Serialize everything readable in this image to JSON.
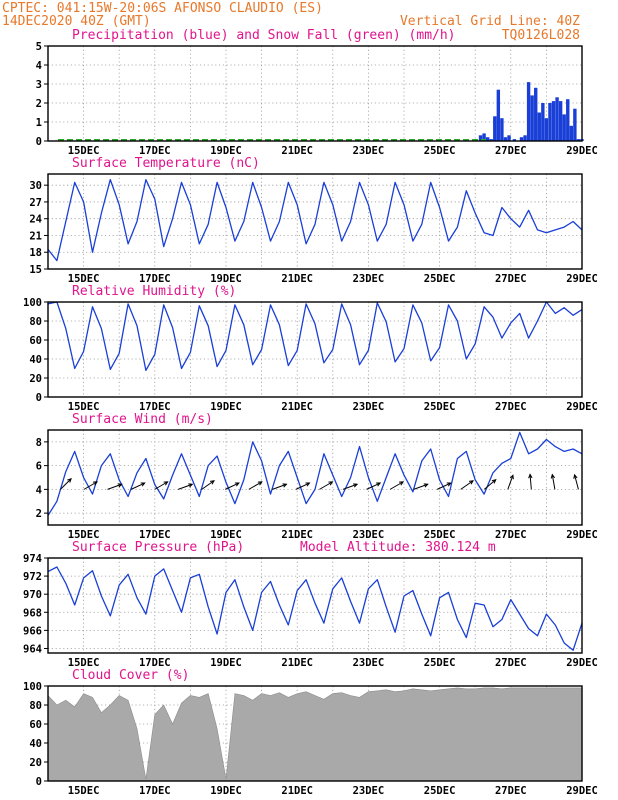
{
  "header": {
    "line1": "CPTEC:   041:15W-20:06S   AFONSO CLAUDIO (ES)",
    "line2_left": "14DEC2020 40Z (GMT)",
    "line2_right": "Vertical Grid Line: 40Z",
    "line3_right": "TQ0126L028"
  },
  "colors": {
    "header": "#e8782a",
    "title": "#e0148c",
    "series": "#1a3fd6",
    "snow": "#2aa82a",
    "cloud": "#a9a9a9"
  },
  "chart_data": [
    {
      "type": "bar",
      "title": "Precipitation (blue) and Snow Fall (green) (mm/h)",
      "ylim": [
        0,
        5
      ],
      "yticks": [
        "0",
        "1",
        "2",
        "3",
        "4",
        "5"
      ],
      "xlabels": [
        "15DEC",
        "17DEC",
        "19DEC",
        "21DEC",
        "23DEC",
        "25DEC",
        "27DEC",
        "29DEC"
      ],
      "series": [
        {
          "name": "Precipitation",
          "x": [
            26.15,
            26.25,
            26.35,
            26.45,
            26.55,
            26.65,
            26.75,
            26.85,
            26.95,
            27.1,
            27.3,
            27.4,
            27.5,
            27.6,
            27.7,
            27.8,
            27.9,
            28.0,
            28.1,
            28.2,
            28.3,
            28.4,
            28.5,
            28.6,
            28.7,
            28.8,
            28.9,
            29.0
          ],
          "values": [
            0.3,
            0.4,
            0.2,
            0.1,
            1.3,
            2.7,
            1.2,
            0.2,
            0.3,
            0.1,
            0.2,
            0.3,
            3.1,
            2.4,
            2.8,
            1.5,
            2.0,
            1.2,
            2.0,
            2.1,
            2.3,
            2.1,
            1.4,
            2.2,
            0.8,
            1.7,
            0.1,
            0.1
          ]
        },
        {
          "name": "Snow Fall",
          "x": [],
          "values": []
        }
      ]
    },
    {
      "type": "line",
      "title": "Surface Temperature (nC)",
      "ylim": [
        15,
        32
      ],
      "yticks": [
        "15",
        "18",
        "21",
        "24",
        "27",
        "30"
      ],
      "xlabels": [
        "15DEC",
        "17DEC",
        "19DEC",
        "21DEC",
        "23DEC",
        "25DEC",
        "27DEC",
        "29DEC"
      ],
      "x": [
        14.0,
        14.25,
        14.5,
        14.75,
        15.0,
        15.25,
        15.5,
        15.75,
        16.0,
        16.25,
        16.5,
        16.75,
        17.0,
        17.25,
        17.5,
        17.75,
        18.0,
        18.25,
        18.5,
        18.75,
        19.0,
        19.25,
        19.5,
        19.75,
        20.0,
        20.25,
        20.5,
        20.75,
        21.0,
        21.25,
        21.5,
        21.75,
        22.0,
        22.25,
        22.5,
        22.75,
        23.0,
        23.25,
        23.5,
        23.75,
        24.0,
        24.25,
        24.5,
        24.75,
        25.0,
        25.25,
        25.5,
        25.75,
        26.0,
        26.25,
        26.5,
        26.75,
        27.0,
        27.25,
        27.5,
        27.75,
        28.0,
        28.25,
        28.5,
        28.75,
        29.0
      ],
      "values": [
        18.5,
        16.5,
        23.5,
        30.5,
        27.0,
        18.0,
        25.0,
        31.0,
        26.5,
        19.5,
        23.5,
        31.0,
        27.5,
        19.0,
        24.0,
        30.5,
        26.5,
        19.5,
        23.0,
        30.5,
        26.0,
        20.0,
        23.5,
        30.5,
        26.0,
        20.0,
        23.5,
        30.5,
        26.5,
        19.5,
        23.0,
        30.5,
        26.5,
        20.0,
        23.5,
        30.5,
        26.5,
        20.0,
        23.0,
        30.5,
        26.5,
        20.0,
        23.0,
        30.5,
        26.0,
        20.0,
        22.5,
        29.0,
        25.0,
        21.5,
        21.0,
        26.0,
        24.0,
        22.5,
        25.5,
        22.0,
        21.5,
        22.0,
        22.5,
        23.5,
        22.0
      ]
    },
    {
      "type": "line",
      "title": "Relative Humidity (%)",
      "ylim": [
        0,
        100
      ],
      "yticks": [
        "0",
        "20",
        "40",
        "60",
        "80",
        "100"
      ],
      "xlabels": [
        "15DEC",
        "17DEC",
        "19DEC",
        "21DEC",
        "23DEC",
        "25DEC",
        "27DEC",
        "29DEC"
      ],
      "x": [
        14.0,
        14.25,
        14.5,
        14.75,
        15.0,
        15.25,
        15.5,
        15.75,
        16.0,
        16.25,
        16.5,
        16.75,
        17.0,
        17.25,
        17.5,
        17.75,
        18.0,
        18.25,
        18.5,
        18.75,
        19.0,
        19.25,
        19.5,
        19.75,
        20.0,
        20.25,
        20.5,
        20.75,
        21.0,
        21.25,
        21.5,
        21.75,
        22.0,
        22.25,
        22.5,
        22.75,
        23.0,
        23.25,
        23.5,
        23.75,
        24.0,
        24.25,
        24.5,
        24.75,
        25.0,
        25.25,
        25.5,
        25.75,
        26.0,
        26.25,
        26.5,
        26.75,
        27.0,
        27.25,
        27.5,
        27.75,
        28.0,
        28.25,
        28.5,
        28.75,
        29.0
      ],
      "values": [
        98,
        100,
        72,
        30,
        48,
        95,
        72,
        29,
        46,
        98,
        75,
        28,
        45,
        97,
        73,
        30,
        47,
        96,
        75,
        32,
        49,
        97,
        76,
        34,
        50,
        97,
        76,
        33,
        49,
        98,
        77,
        36,
        50,
        98,
        76,
        34,
        49,
        99,
        79,
        37,
        51,
        97,
        78,
        38,
        52,
        97,
        80,
        40,
        56,
        95,
        84,
        62,
        78,
        88,
        62,
        80,
        100,
        88,
        94,
        86,
        92
      ]
    },
    {
      "type": "line",
      "title": "Surface Wind (m/s)",
      "ylim": [
        1,
        9
      ],
      "yticks": [
        "2",
        "4",
        "6",
        "8"
      ],
      "xlabels": [
        "15DEC",
        "17DEC",
        "19DEC",
        "21DEC",
        "23DEC",
        "25DEC",
        "27DEC",
        "29DEC"
      ],
      "x": [
        14.0,
        14.25,
        14.5,
        14.75,
        15.0,
        15.25,
        15.5,
        15.75,
        16.0,
        16.25,
        16.5,
        16.75,
        17.0,
        17.25,
        17.5,
        17.75,
        18.0,
        18.25,
        18.5,
        18.75,
        19.0,
        19.25,
        19.5,
        19.75,
        20.0,
        20.25,
        20.5,
        20.75,
        21.0,
        21.25,
        21.5,
        21.75,
        22.0,
        22.25,
        22.5,
        22.75,
        23.0,
        23.25,
        23.5,
        23.75,
        24.0,
        24.25,
        24.5,
        24.75,
        25.0,
        25.25,
        25.5,
        25.75,
        26.0,
        26.25,
        26.5,
        26.75,
        27.0,
        27.25,
        27.5,
        27.75,
        28.0,
        28.25,
        28.5,
        28.75,
        29.0
      ],
      "values": [
        1.8,
        3.0,
        5.5,
        7.2,
        5.0,
        3.6,
        6.0,
        7.0,
        4.8,
        3.4,
        5.4,
        6.6,
        4.4,
        3.2,
        5.2,
        7.0,
        5.2,
        3.4,
        6.0,
        6.8,
        4.6,
        2.8,
        4.8,
        8.0,
        6.4,
        3.6,
        6.0,
        7.2,
        5.0,
        2.8,
        4.0,
        7.0,
        5.2,
        3.4,
        5.0,
        7.6,
        5.0,
        3.0,
        5.0,
        7.0,
        5.2,
        3.8,
        6.4,
        7.4,
        4.8,
        3.4,
        6.6,
        7.2,
        4.8,
        3.6,
        5.4,
        6.2,
        6.6,
        8.8,
        7.0,
        7.4,
        8.2,
        7.6,
        7.2,
        7.4,
        7.0
      ],
      "arrows_dir_deg": [
        225,
        240,
        250,
        245,
        240,
        250,
        235,
        245,
        240,
        250,
        245,
        240,
        250,
        245,
        240,
        250,
        245,
        235,
        230,
        200,
        175,
        170,
        165
      ]
    },
    {
      "type": "line",
      "title": "Surface Pressure (hPa)",
      "subtitle": "Model Altitude: 380.124 m",
      "ylim": [
        963.5,
        974
      ],
      "yticks": [
        "964",
        "966",
        "968",
        "970",
        "972",
        "974"
      ],
      "xlabels": [
        "15DEC",
        "17DEC",
        "19DEC",
        "21DEC",
        "23DEC",
        "25DEC",
        "27DEC",
        "29DEC"
      ],
      "x": [
        14.0,
        14.25,
        14.5,
        14.75,
        15.0,
        15.25,
        15.5,
        15.75,
        16.0,
        16.25,
        16.5,
        16.75,
        17.0,
        17.25,
        17.5,
        17.75,
        18.0,
        18.25,
        18.5,
        18.75,
        19.0,
        19.25,
        19.5,
        19.75,
        20.0,
        20.25,
        20.5,
        20.75,
        21.0,
        21.25,
        21.5,
        21.75,
        22.0,
        22.25,
        22.5,
        22.75,
        23.0,
        23.25,
        23.5,
        23.75,
        24.0,
        24.25,
        24.5,
        24.75,
        25.0,
        25.25,
        25.5,
        25.75,
        26.0,
        26.25,
        26.5,
        26.75,
        27.0,
        27.25,
        27.5,
        27.75,
        28.0,
        28.25,
        28.5,
        28.75,
        29.0
      ],
      "values": [
        972.5,
        973.0,
        971.2,
        968.8,
        971.8,
        972.6,
        969.8,
        967.6,
        971.0,
        972.2,
        969.6,
        967.8,
        972.0,
        972.8,
        970.4,
        968.0,
        971.8,
        972.2,
        968.6,
        965.6,
        970.2,
        971.6,
        968.6,
        966.0,
        970.2,
        971.4,
        968.8,
        966.6,
        970.4,
        971.6,
        969.0,
        966.8,
        970.6,
        971.8,
        969.2,
        966.8,
        970.6,
        971.6,
        968.6,
        965.8,
        969.8,
        970.4,
        967.8,
        965.4,
        969.6,
        970.2,
        967.2,
        965.2,
        969.0,
        968.8,
        966.4,
        967.2,
        969.4,
        967.8,
        966.2,
        965.4,
        967.8,
        966.6,
        964.6,
        963.8,
        966.8
      ]
    },
    {
      "type": "area",
      "title": "Cloud Cover (%)",
      "ylim": [
        0,
        100
      ],
      "yticks": [
        "0",
        "20",
        "40",
        "60",
        "80",
        "100"
      ],
      "xlabels": [
        "15DEC",
        "17DEC",
        "19DEC",
        "21DEC",
        "23DEC",
        "25DEC",
        "27DEC",
        "29DEC"
      ],
      "x": [
        14.0,
        14.25,
        14.5,
        14.75,
        15.0,
        15.25,
        15.5,
        15.75,
        16.0,
        16.25,
        16.5,
        16.75,
        17.0,
        17.25,
        17.5,
        17.75,
        18.0,
        18.25,
        18.5,
        18.75,
        19.0,
        19.25,
        19.5,
        19.75,
        20.0,
        20.25,
        20.5,
        20.75,
        21.0,
        21.25,
        21.5,
        21.75,
        22.0,
        22.25,
        22.5,
        22.75,
        23.0,
        23.25,
        23.5,
        23.75,
        24.0,
        24.25,
        24.5,
        24.75,
        25.0,
        25.25,
        25.5,
        25.75,
        26.0,
        26.25,
        26.5,
        26.75,
        27.0,
        27.25,
        27.5,
        27.75,
        28.0,
        28.25,
        28.5,
        28.75,
        29.0
      ],
      "values": [
        90,
        80,
        85,
        78,
        92,
        88,
        72,
        80,
        90,
        85,
        55,
        2,
        70,
        80,
        60,
        82,
        90,
        88,
        92,
        55,
        2,
        92,
        90,
        85,
        92,
        90,
        93,
        88,
        92,
        94,
        90,
        86,
        92,
        93,
        90,
        88,
        94,
        95,
        96,
        94,
        95,
        97,
        96,
        95,
        96,
        97,
        98,
        97,
        97,
        98,
        98,
        97,
        98,
        98,
        98,
        98,
        98,
        98,
        98,
        98,
        98
      ]
    }
  ]
}
